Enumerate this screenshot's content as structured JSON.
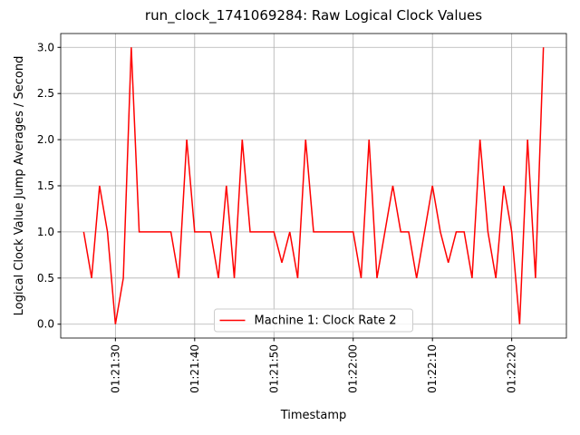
{
  "chart_data": {
    "type": "line",
    "title": "run_clock_1741069284: Raw Logical Clock Values",
    "x_label": "Timestamp",
    "y_label": "Logical Clock Value Jump Averages / Second",
    "x": [
      "01:21:26",
      "01:21:27",
      "01:21:28",
      "01:21:29",
      "01:21:30",
      "01:21:31",
      "01:21:32",
      "01:21:33",
      "01:21:34",
      "01:21:35",
      "01:21:36",
      "01:21:37",
      "01:21:38",
      "01:21:39",
      "01:21:40",
      "01:21:41",
      "01:21:42",
      "01:21:43",
      "01:21:44",
      "01:21:45",
      "01:21:46",
      "01:21:47",
      "01:21:48",
      "01:21:49",
      "01:21:50",
      "01:21:51",
      "01:21:52",
      "01:21:53",
      "01:21:54",
      "01:21:55",
      "01:21:56",
      "01:21:57",
      "01:21:58",
      "01:21:59",
      "01:22:00",
      "01:22:01",
      "01:22:02",
      "01:22:03",
      "01:22:04",
      "01:22:05",
      "01:22:06",
      "01:22:07",
      "01:22:08",
      "01:22:09",
      "01:22:10",
      "01:22:11",
      "01:22:12",
      "01:22:13",
      "01:22:14",
      "01:22:15",
      "01:22:16",
      "01:22:17",
      "01:22:18",
      "01:22:19",
      "01:22:20",
      "01:22:21",
      "01:22:22",
      "01:22:23",
      "01:22:24"
    ],
    "series": [
      {
        "name": "Machine 1: Clock Rate 2",
        "color": "#ff0000",
        "values": [
          1.0,
          0.5,
          1.5,
          1.0,
          0.0,
          0.5,
          3.0,
          1.0,
          1.0,
          1.0,
          1.0,
          1.0,
          0.5,
          2.0,
          1.0,
          1.0,
          1.0,
          0.5,
          1.5,
          0.5,
          2.0,
          1.0,
          1.0,
          1.0,
          1.0,
          0.667,
          1.0,
          0.5,
          2.0,
          1.0,
          1.0,
          1.0,
          1.0,
          1.0,
          1.0,
          0.5,
          2.0,
          0.5,
          1.0,
          1.5,
          1.0,
          1.0,
          0.5,
          1.0,
          1.5,
          1.0,
          0.667,
          1.0,
          1.0,
          0.5,
          2.0,
          1.0,
          0.5,
          1.5,
          1.0,
          0.0,
          2.0,
          0.5,
          3.0
        ]
      }
    ],
    "xlim": [
      "01:21:23.1",
      "01:22:26.9"
    ],
    "xticks": [
      "01:21:30",
      "01:21:40",
      "01:21:50",
      "01:22:00",
      "01:22:10",
      "01:22:20"
    ],
    "ylim": [
      -0.15,
      3.15
    ],
    "yticks": [
      {
        "value": 0,
        "label": "0.0"
      },
      {
        "value": 0.5,
        "label": "0.5"
      },
      {
        "value": 1,
        "label": "1.0"
      },
      {
        "value": 1.5,
        "label": "1.5"
      },
      {
        "value": 2,
        "label": "2.0"
      },
      {
        "value": 2.5,
        "label": "2.5"
      },
      {
        "value": 3,
        "label": "3.0"
      }
    ],
    "grid": true,
    "legend": "lower center"
  }
}
